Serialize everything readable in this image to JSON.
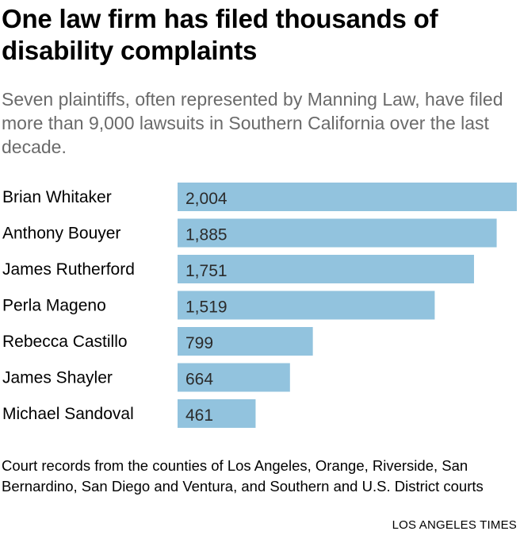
{
  "chart_data": {
    "type": "bar",
    "orientation": "horizontal",
    "title": "One law firm has filed thousands of disability complaints",
    "subtitle": "Seven plaintiffs, often represented by Manning Law, have filed more than 9,000 lawsuits in Southern California over the last decade.",
    "categories": [
      "Brian Whitaker",
      "Anthony Bouyer",
      "James Rutherford",
      "Perla Mageno",
      "Rebecca Castillo",
      "James Shayler",
      "Michael Sandoval"
    ],
    "values": [
      2004,
      1885,
      1751,
      1519,
      799,
      664,
      461
    ],
    "value_labels": [
      "2,004",
      "1,885",
      "1,751",
      "1,519",
      "799",
      "664",
      "461"
    ],
    "xlim": [
      0,
      2004
    ],
    "grid": false,
    "legend": "none",
    "bar_color": "#92c3de",
    "note": "Court records from the counties of Los Angeles, Orange, Riverside, San Bernardino, San Diego and Ventura, and Southern and U.S. District courts",
    "credit": "LOS ANGELES TIMES"
  }
}
